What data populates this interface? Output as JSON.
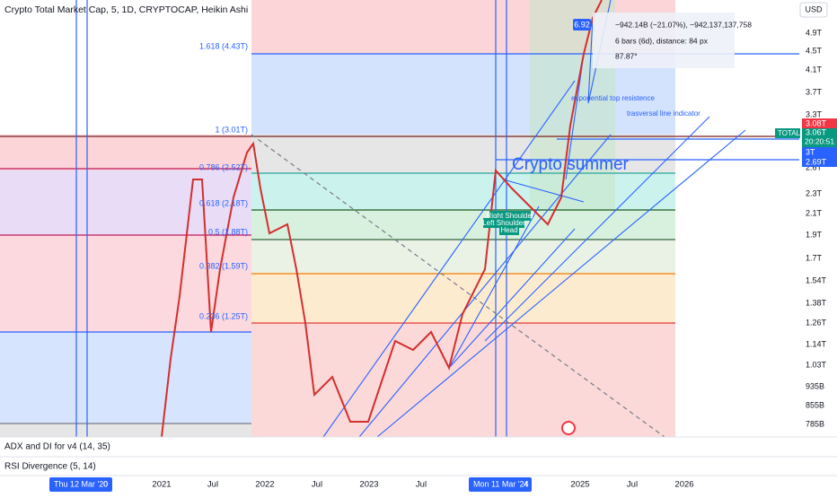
{
  "header": {
    "title": "Crypto Total Market Cap, 5, 1D, CRYPTOCAP, Heikin Ashi",
    "currency": "USD"
  },
  "price_axis": {
    "labels": [
      "4.9T",
      "4.5T",
      "4.1T",
      "3.7T",
      "3.3T",
      "2.6T",
      "2.3T",
      "2.1T",
      "1.9T",
      "1.7T",
      "1.54T",
      "1.38T",
      "1.26T",
      "1.14T",
      "1.03T",
      "935B",
      "855B",
      "785B"
    ],
    "badges": {
      "high": "3.08T",
      "symbol": "TOTAL",
      "last": "3.06T",
      "countdown": "20:20:51",
      "mid": "3T",
      "low": "2.69T"
    }
  },
  "time_axis": {
    "labels": [
      "2021",
      "Jul",
      "2022",
      "Jul",
      "2023",
      "Jul",
      "2025",
      "Jul",
      "2026"
    ],
    "cursor_left": "Thu 12 Mar '20",
    "cursor_left_num": "0",
    "cursor_right": "Mon 11 Mar '24",
    "cursor_right_num": "4"
  },
  "fib_labels": [
    "1.618 (4.43T)",
    "1 (3.01T)",
    "0.786 (2.52T)",
    "0.618 (2.18T)",
    "0.5 (1.88T)",
    "0.382 (1.59T)",
    "0.236 (1.25T)"
  ],
  "annotations": {
    "summer": "Crypto summer",
    "exp": "exponential top resistence",
    "trans": "trasversal line indicator",
    "right_shoulder": "Right Shoulder",
    "left_shoulder": "Left Shoulder",
    "head": "Head"
  },
  "measure": {
    "badge": "6.92",
    "change": "−942.14B (−21.07%), −942,137,137,758",
    "bars": "6 bars (6d), distance: 84 px",
    "angle": "87.87°"
  },
  "indicators": [
    "ADX and DI for v4 (14, 35)",
    "RSI Divergence (5, 14)"
  ]
}
